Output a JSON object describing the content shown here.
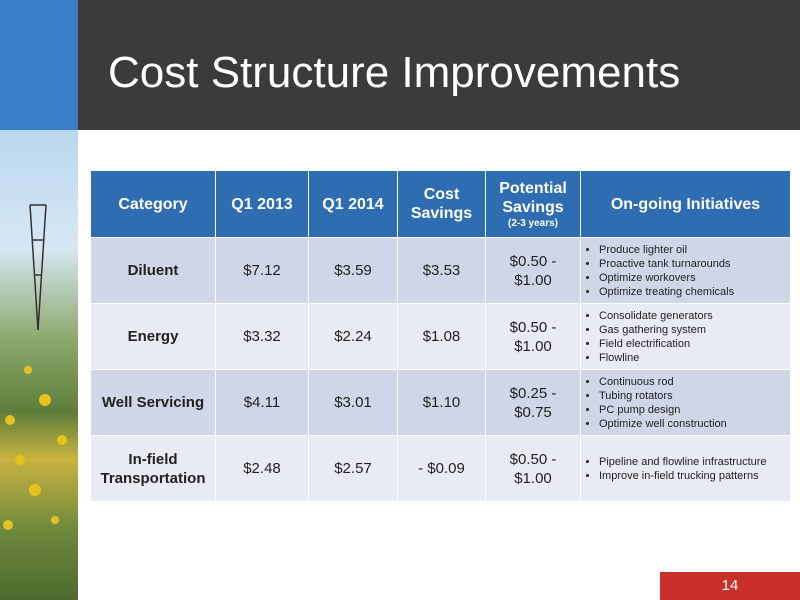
{
  "header": {
    "title": "Cost Structure Improvements"
  },
  "table": {
    "columns": [
      "Category",
      "Q1 2013",
      "Q1 2014",
      "Cost Savings",
      "Potential Savings",
      "On-going Initiatives"
    ],
    "potential_savings_note": "(2-3 years)",
    "rows": [
      {
        "category": "Diluent",
        "q1_2013": "$7.12",
        "q1_2014": "$3.59",
        "cost_savings": "$3.53",
        "potential_savings": "$0.50 - $1.00",
        "initiatives": [
          "Produce lighter oil",
          "Proactive tank turnarounds",
          "Optimize workovers",
          "Optimize treating chemicals"
        ]
      },
      {
        "category": "Energy",
        "q1_2013": "$3.32",
        "q1_2014": "$2.24",
        "cost_savings": "$1.08",
        "potential_savings": "$0.50 - $1.00",
        "initiatives": [
          "Consolidate generators",
          "Gas gathering system",
          "Field electrification",
          "Flowline"
        ]
      },
      {
        "category": "Well Servicing",
        "q1_2013": "$4.11",
        "q1_2014": "$3.01",
        "cost_savings": "$1.10",
        "potential_savings": "$0.25 - $0.75",
        "initiatives": [
          "Continuous rod",
          "Tubing rotators",
          "PC pump design",
          "Optimize well construction"
        ]
      },
      {
        "category": "In-field Transportation",
        "q1_2013": "$2.48",
        "q1_2014": "$2.57",
        "cost_savings": "- $0.09",
        "potential_savings": "$0.50 - $1.00",
        "initiatives": [
          "Pipeline and flowline infrastructure",
          "Improve in-field trucking patterns"
        ]
      }
    ]
  },
  "footer": {
    "page_number": "14"
  }
}
